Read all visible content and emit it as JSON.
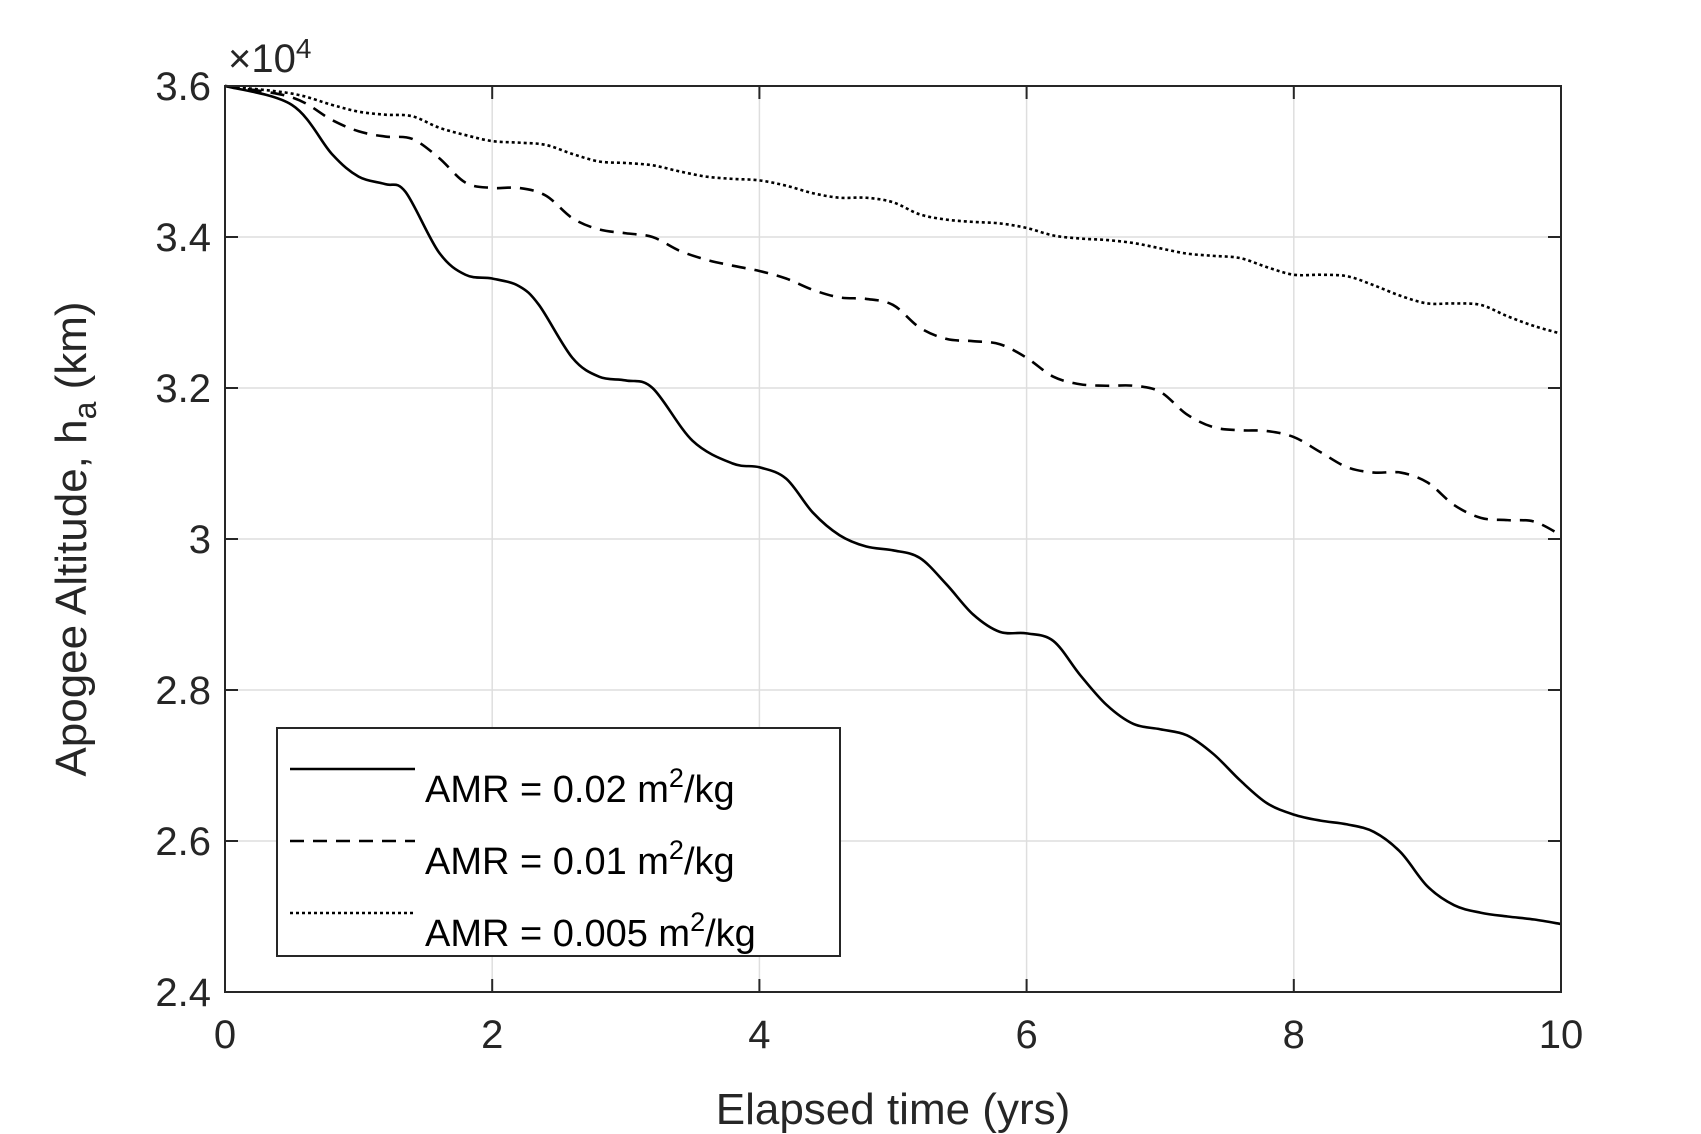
{
  "chart_data": {
    "type": "line",
    "xlabel": "Elapsed time (yrs)",
    "ylabel": {
      "main": "Apogee Altitude, h",
      "subscript": "a",
      "unit": " (km)"
    },
    "y_exponent": {
      "base": "×10",
      "power": "4"
    },
    "xlim": [
      0,
      10
    ],
    "ylim": [
      2.4,
      3.6
    ],
    "xticks": [
      0,
      2,
      4,
      6,
      8,
      10
    ],
    "xtick_labels": [
      "0",
      "2",
      "4",
      "6",
      "8",
      "10"
    ],
    "yticks": [
      2.4,
      2.6,
      2.8,
      3.0,
      3.2,
      3.4,
      3.6
    ],
    "ytick_labels": [
      "2.4",
      "2.6",
      "2.8",
      "3",
      "3.2",
      "3.4",
      "3.6"
    ],
    "grid": true,
    "legend_position": "bottom-left",
    "series": [
      {
        "legend": {
          "prefix": "AMR = 0.02 m",
          "sup": "2",
          "suffix": "/kg"
        },
        "style": "solid",
        "x": [
          0,
          0.5,
          0.8,
          1.0,
          1.2,
          1.35,
          1.6,
          1.8,
          2.0,
          2.2,
          2.35,
          2.6,
          2.8,
          3.0,
          3.2,
          3.5,
          3.8,
          4.0,
          4.2,
          4.4,
          4.6,
          4.8,
          5.0,
          5.2,
          5.4,
          5.6,
          5.8,
          6.0,
          6.2,
          6.4,
          6.6,
          6.8,
          7.0,
          7.2,
          7.4,
          7.6,
          7.8,
          8.0,
          8.2,
          8.4,
          8.6,
          8.8,
          9.0,
          9.2,
          9.4,
          9.6,
          9.8,
          10.0
        ],
        "y": [
          3.6,
          3.575,
          3.51,
          3.48,
          3.47,
          3.46,
          3.38,
          3.35,
          3.345,
          3.335,
          3.31,
          3.24,
          3.215,
          3.21,
          3.2,
          3.13,
          3.1,
          3.095,
          3.08,
          3.035,
          3.005,
          2.99,
          2.985,
          2.975,
          2.94,
          2.9,
          2.877,
          2.875,
          2.865,
          2.82,
          2.78,
          2.755,
          2.748,
          2.74,
          2.715,
          2.68,
          2.65,
          2.635,
          2.627,
          2.622,
          2.612,
          2.585,
          2.54,
          2.515,
          2.505,
          2.5,
          2.496,
          2.49
        ]
      },
      {
        "legend": {
          "prefix": "AMR = 0.01 m",
          "sup": "2",
          "suffix": "/kg"
        },
        "style": "dashed",
        "x": [
          0,
          0.5,
          0.8,
          1.0,
          1.2,
          1.4,
          1.6,
          1.8,
          2.0,
          2.2,
          2.4,
          2.6,
          2.8,
          3.0,
          3.2,
          3.4,
          3.6,
          3.8,
          4.0,
          4.2,
          4.4,
          4.6,
          4.8,
          5.0,
          5.2,
          5.4,
          5.6,
          5.8,
          6.0,
          6.2,
          6.4,
          6.6,
          6.8,
          7.0,
          7.2,
          7.4,
          7.6,
          7.8,
          8.0,
          8.2,
          8.4,
          8.6,
          8.8,
          9.0,
          9.2,
          9.4,
          9.6,
          9.8,
          10.0
        ],
        "y": [
          3.6,
          3.585,
          3.555,
          3.54,
          3.533,
          3.53,
          3.505,
          3.472,
          3.465,
          3.465,
          3.455,
          3.425,
          3.41,
          3.405,
          3.4,
          3.382,
          3.37,
          3.362,
          3.355,
          3.345,
          3.33,
          3.32,
          3.318,
          3.31,
          3.28,
          3.265,
          3.262,
          3.258,
          3.24,
          3.215,
          3.205,
          3.203,
          3.203,
          3.195,
          3.165,
          3.148,
          3.144,
          3.143,
          3.135,
          3.115,
          3.095,
          3.088,
          3.088,
          3.075,
          3.045,
          3.028,
          3.025,
          3.023,
          3.005
        ]
      },
      {
        "legend": {
          "prefix": "AMR = 0.005 m",
          "sup": "2",
          "suffix": "/kg"
        },
        "style": "dotted",
        "x": [
          0,
          0.5,
          0.8,
          1.0,
          1.2,
          1.4,
          1.6,
          1.8,
          2.0,
          2.2,
          2.4,
          2.6,
          2.8,
          3.0,
          3.2,
          3.4,
          3.6,
          3.8,
          4.0,
          4.2,
          4.4,
          4.6,
          4.8,
          5.0,
          5.2,
          5.4,
          5.6,
          5.8,
          6.0,
          6.2,
          6.4,
          6.6,
          6.8,
          7.0,
          7.2,
          7.4,
          7.6,
          7.8,
          8.0,
          8.2,
          8.4,
          8.6,
          8.8,
          9.0,
          9.2,
          9.4,
          9.6,
          9.8,
          10.0
        ],
        "y": [
          3.6,
          3.59,
          3.575,
          3.566,
          3.562,
          3.56,
          3.545,
          3.535,
          3.527,
          3.525,
          3.522,
          3.51,
          3.5,
          3.498,
          3.495,
          3.487,
          3.48,
          3.477,
          3.475,
          3.468,
          3.458,
          3.452,
          3.452,
          3.446,
          3.43,
          3.423,
          3.42,
          3.418,
          3.412,
          3.402,
          3.398,
          3.396,
          3.392,
          3.385,
          3.378,
          3.375,
          3.372,
          3.36,
          3.35,
          3.35,
          3.348,
          3.336,
          3.322,
          3.312,
          3.312,
          3.31,
          3.295,
          3.282,
          3.272
        ]
      }
    ]
  }
}
